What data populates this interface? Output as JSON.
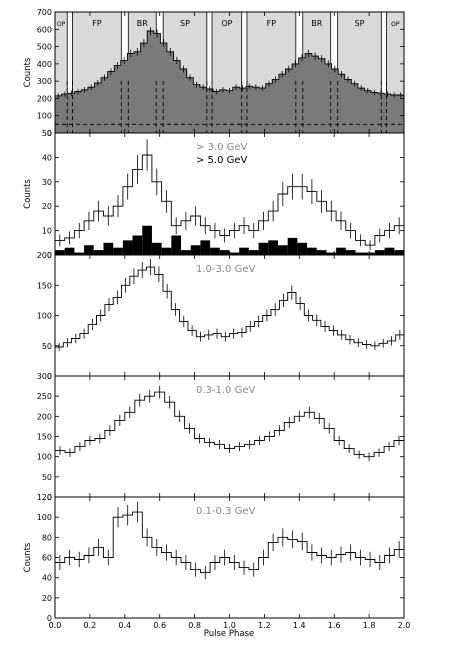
{
  "figure": {
    "xlabel": "Pulse Phase",
    "xticks": [
      0.0,
      0.2,
      0.4,
      0.6,
      0.8,
      1.0,
      1.2,
      1.4,
      1.6,
      1.8,
      2.0
    ],
    "xtick_labels": [
      "0.0",
      "0.2",
      "0.4",
      "0.6",
      "0.8",
      "1.0",
      "1.2",
      "1.4",
      "1.6",
      "1.8",
      "2.0"
    ],
    "xlim": [
      0,
      2
    ]
  },
  "colors": {
    "fill_top": "#7a7a7a",
    "band_fill": "#d9d9d9",
    "energy_gray": "#888888",
    "black": "#000000"
  },
  "chart_data": [
    {
      "type": "area",
      "ylabel": "Counts",
      "ylim": [
        0,
        700
      ],
      "yticks": [
        0,
        100,
        200,
        300,
        400,
        500,
        600,
        700
      ],
      "phase_bands": [
        {
          "label": "OP",
          "x0": 0.0,
          "x1": 0.07
        },
        {
          "label": "FP",
          "x0": 0.1,
          "x1": 0.38
        },
        {
          "label": "BR",
          "x0": 0.42,
          "x1": 0.58
        },
        {
          "label": "SP",
          "x0": 0.62,
          "x1": 0.87
        },
        {
          "label": "OP",
          "x0": 0.9,
          "x1": 1.07
        },
        {
          "label": "FP",
          "x0": 1.1,
          "x1": 1.38
        },
        {
          "label": "BR",
          "x0": 1.42,
          "x1": 1.58
        },
        {
          "label": "SP",
          "x0": 1.62,
          "x1": 1.87
        },
        {
          "label": "OP",
          "x0": 1.9,
          "x1": 2.0
        }
      ],
      "background_level": 50,
      "series": [
        {
          "values": [
            215,
            225,
            230,
            240,
            250,
            265,
            290,
            320,
            355,
            390,
            420,
            460,
            470,
            520,
            590,
            575,
            520,
            470,
            420,
            370,
            320,
            280,
            265,
            255,
            240,
            250,
            245,
            265,
            260,
            270,
            265,
            260,
            285,
            310,
            340,
            370,
            400,
            435,
            460,
            445,
            430,
            400,
            370,
            340,
            310,
            285,
            260,
            245,
            235,
            230,
            225,
            220,
            220
          ]
        }
      ]
    },
    {
      "type": "line",
      "ylabel": "Counts",
      "ylim": [
        0,
        50
      ],
      "yticks": [
        0,
        10,
        20,
        30,
        40,
        50
      ],
      "series_labels": [
        "> 3.0 GeV",
        "> 5.0 GeV"
      ],
      "series": [
        {
          "values": [
            6,
            7,
            10,
            14,
            18,
            16,
            20,
            28,
            35,
            41,
            30,
            22,
            12,
            14,
            16,
            12,
            10,
            8,
            10,
            12,
            10,
            14,
            18,
            25,
            28,
            28,
            26,
            22,
            18,
            14,
            10,
            6,
            4,
            8,
            10,
            12
          ]
        },
        {
          "values": [
            2,
            3,
            1,
            4,
            2,
            5,
            3,
            6,
            8,
            12,
            5,
            3,
            8,
            2,
            4,
            6,
            3,
            2,
            1,
            3,
            2,
            5,
            6,
            4,
            7,
            5,
            3,
            2,
            1,
            3,
            2,
            1,
            1,
            2,
            3,
            2
          ]
        }
      ]
    },
    {
      "type": "line",
      "ylabel": "",
      "ylim": [
        0,
        200
      ],
      "yticks": [
        0,
        50,
        100,
        150,
        200
      ],
      "series_labels": [
        "1.0-3.0 GeV"
      ],
      "series": [
        {
          "values": [
            48,
            55,
            62,
            70,
            85,
            100,
            118,
            130,
            150,
            165,
            175,
            180,
            168,
            140,
            110,
            90,
            75,
            65,
            68,
            70,
            65,
            70,
            72,
            82,
            90,
            100,
            110,
            125,
            138,
            120,
            100,
            92,
            82,
            75,
            68,
            60,
            55,
            52,
            50,
            54,
            58,
            68
          ]
        }
      ]
    },
    {
      "type": "line",
      "ylabel": "",
      "ylim": [
        0,
        300
      ],
      "yticks": [
        0,
        50,
        100,
        150,
        200,
        250,
        300
      ],
      "series_labels": [
        "0.3-1.0 GeV"
      ],
      "series": [
        {
          "values": [
            115,
            110,
            125,
            140,
            145,
            165,
            190,
            210,
            240,
            250,
            260,
            235,
            200,
            170,
            145,
            135,
            130,
            120,
            125,
            130,
            140,
            150,
            165,
            185,
            200,
            210,
            195,
            170,
            140,
            120,
            105,
            100,
            110,
            125,
            140
          ]
        }
      ]
    },
    {
      "type": "line",
      "ylabel": "Counts",
      "ylim": [
        0,
        120
      ],
      "yticks": [
        0,
        20,
        40,
        60,
        80,
        100,
        120
      ],
      "series_labels": [
        "0.1-0.3 GeV"
      ],
      "series": [
        {
          "values": [
            55,
            60,
            58,
            62,
            70,
            60,
            100,
            102,
            105,
            80,
            70,
            65,
            60,
            55,
            48,
            45,
            55,
            60,
            55,
            50,
            48,
            60,
            75,
            80,
            78,
            76,
            65,
            62,
            60,
            63,
            65,
            60,
            58,
            55,
            62,
            68
          ]
        }
      ]
    }
  ]
}
